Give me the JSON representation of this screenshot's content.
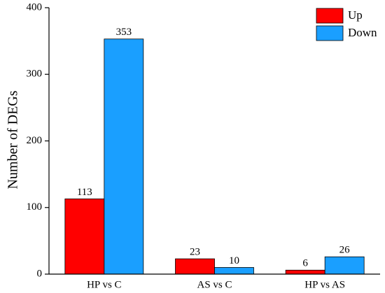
{
  "chart_data": {
    "type": "bar",
    "y_label": "Number of DEGs",
    "categories": [
      "HP vs C",
      "AS vs C",
      "HP vs AS"
    ],
    "series": [
      {
        "name": "Up",
        "color": "#ff0000",
        "values": [
          113,
          23,
          6
        ]
      },
      {
        "name": "Down",
        "color": "#1a9fff",
        "values": [
          353,
          10,
          26
        ]
      }
    ],
    "ylim": [
      0,
      400
    ],
    "yticks": [
      0,
      100,
      200,
      300,
      400
    ],
    "legend": "upper-right"
  }
}
